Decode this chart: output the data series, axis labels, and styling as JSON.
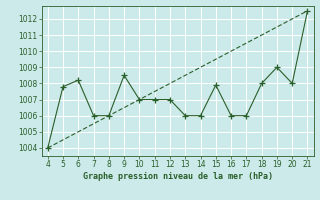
{
  "x": [
    4,
    5,
    6,
    7,
    8,
    9,
    10,
    11,
    12,
    13,
    14,
    15,
    16,
    17,
    18,
    19,
    20,
    21
  ],
  "y_solid": [
    1004,
    1007.8,
    1008.2,
    1006,
    1006,
    1008.5,
    1007,
    1007,
    1007,
    1006,
    1006,
    1007.9,
    1006,
    1006,
    1008,
    1009,
    1008,
    1012.5
  ],
  "trend_x": [
    4,
    21
  ],
  "trend_y": [
    1004,
    1012.5
  ],
  "line_color": "#2a5f2a",
  "bg_color": "#cceaea",
  "grid_color": "#b0d8d8",
  "xlabel": "Graphe pression niveau de la mer (hPa)",
  "ylim": [
    1003.5,
    1012.8
  ],
  "xlim": [
    3.6,
    21.4
  ],
  "yticks": [
    1004,
    1005,
    1006,
    1007,
    1008,
    1009,
    1010,
    1011,
    1012
  ],
  "xticks": [
    4,
    5,
    6,
    7,
    8,
    9,
    10,
    11,
    12,
    13,
    14,
    15,
    16,
    17,
    18,
    19,
    20,
    21
  ],
  "marker": "+",
  "marker_size": 4,
  "line_width": 0.8,
  "xlabel_fontsize": 6.0,
  "tick_fontsize": 5.5
}
